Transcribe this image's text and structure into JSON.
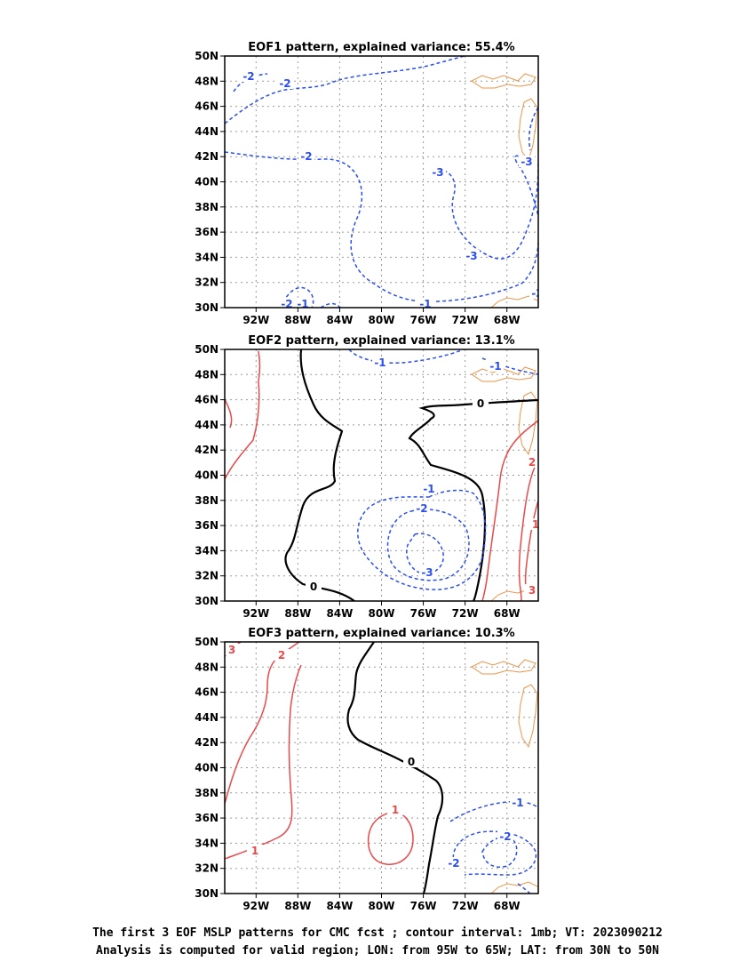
{
  "map": {
    "lon_range": [
      -95,
      -65
    ],
    "lat_range": [
      30,
      50
    ],
    "lon_ticks": [
      "92W",
      "88W",
      "84W",
      "80W",
      "76W",
      "72W",
      "68W"
    ],
    "lat_ticks": [
      "30N",
      "32N",
      "34N",
      "36N",
      "38N",
      "40N",
      "42N",
      "44N",
      "46N",
      "48N",
      "50N"
    ],
    "grid": "dotted",
    "coastline_color": "#e8964a",
    "positive_color": "#e84a4a",
    "negative_color": "#2a4ef0",
    "zero_color": "#000000"
  },
  "panels": [
    {
      "id": "eof1",
      "title": "EOF1 pattern, explained variance: 55.4%",
      "contour_labels": [
        "-2",
        "-2",
        "-2",
        "-3",
        "-3",
        "-3",
        "-2",
        "-2",
        "-1",
        "-1"
      ]
    },
    {
      "id": "eof2",
      "title": "EOF2 pattern, explained variance: 13.1%",
      "contour_labels": [
        "-1",
        "-1",
        "0",
        "-1",
        "-2",
        "-3",
        "0",
        "2",
        "3",
        "1"
      ]
    },
    {
      "id": "eof3",
      "title": "EOF3 pattern, explained variance: 10.3%",
      "contour_labels": [
        "3",
        "2",
        "1",
        "1",
        "0",
        "-1",
        "-2",
        "-2"
      ]
    }
  ],
  "caption": {
    "line1": "The first 3 EOF MSLP patterns for CMC fcst ; contour interval: 1mb; VT: 2023090212",
    "line2": "Analysis is computed for valid region; LON: from 95W to 65W; LAT: from 30N to 50N"
  }
}
